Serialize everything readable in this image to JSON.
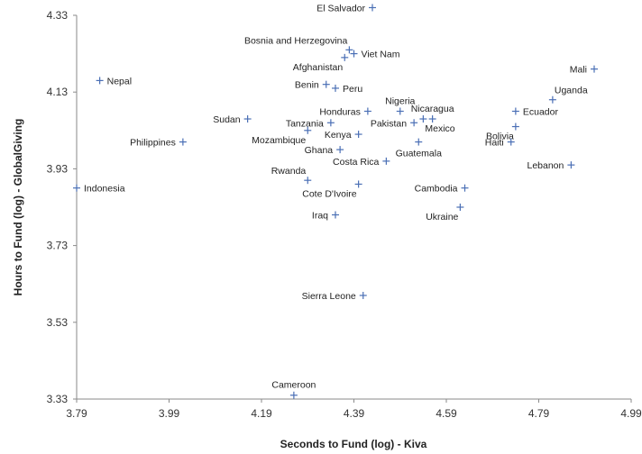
{
  "chart_data": {
    "type": "scatter",
    "xlabel": "Seconds to Fund (log) - Kiva",
    "ylabel": "Hours to Fund (log) - GlobalGiving",
    "xlim": [
      3.79,
      4.99
    ],
    "ylim": [
      3.33,
      4.33
    ],
    "x_ticks": [
      "3.79",
      "3.99",
      "4.19",
      "4.39",
      "4.59",
      "4.79",
      "4.99"
    ],
    "y_ticks": [
      "3.33",
      "3.53",
      "3.73",
      "3.93",
      "4.13",
      "4.33"
    ],
    "grid": false,
    "marker_color": "#4a6fb5",
    "points": [
      {
        "label": "El Salvador",
        "x": 4.43,
        "y": 4.35,
        "pos": "left"
      },
      {
        "label": "Bosnia and Herzegovina",
        "x": 4.38,
        "y": 4.24,
        "pos": "above-left"
      },
      {
        "label": "Viet Nam",
        "x": 4.39,
        "y": 4.23,
        "pos": "right"
      },
      {
        "label": "Afghanistan",
        "x": 4.37,
        "y": 4.22,
        "pos": "below-left"
      },
      {
        "label": "Nepal",
        "x": 3.84,
        "y": 4.16,
        "pos": "right"
      },
      {
        "label": "Mali",
        "x": 4.91,
        "y": 4.19,
        "pos": "left"
      },
      {
        "label": "Benin",
        "x": 4.33,
        "y": 4.15,
        "pos": "left"
      },
      {
        "label": "Peru",
        "x": 4.35,
        "y": 4.14,
        "pos": "right"
      },
      {
        "label": "Uganda",
        "x": 4.82,
        "y": 4.11,
        "pos": "above-right"
      },
      {
        "label": "Nigeria",
        "x": 4.49,
        "y": 4.08,
        "pos": "above"
      },
      {
        "label": "Honduras",
        "x": 4.42,
        "y": 4.08,
        "pos": "left"
      },
      {
        "label": "Nicaragua",
        "x": 4.56,
        "y": 4.06,
        "pos": "above"
      },
      {
        "label": "Ecuador",
        "x": 4.74,
        "y": 4.08,
        "pos": "right"
      },
      {
        "label": "Sudan",
        "x": 4.16,
        "y": 4.06,
        "pos": "left"
      },
      {
        "label": "Tanzania",
        "x": 4.34,
        "y": 4.05,
        "pos": "left"
      },
      {
        "label": "Pakistan",
        "x": 4.52,
        "y": 4.05,
        "pos": "left"
      },
      {
        "label": "Mexico",
        "x": 4.54,
        "y": 4.06,
        "pos": "below-right"
      },
      {
        "label": "Bolivia",
        "x": 4.74,
        "y": 4.04,
        "pos": "below-left"
      },
      {
        "label": "Mozambique",
        "x": 4.29,
        "y": 4.03,
        "pos": "below-left"
      },
      {
        "label": "Kenya",
        "x": 4.4,
        "y": 4.02,
        "pos": "left"
      },
      {
        "label": "Philippines",
        "x": 4.02,
        "y": 4.0,
        "pos": "left"
      },
      {
        "label": "Guatemala",
        "x": 4.53,
        "y": 4.0,
        "pos": "below"
      },
      {
        "label": "Haiti",
        "x": 4.73,
        "y": 4.0,
        "pos": "left"
      },
      {
        "label": "Ghana",
        "x": 4.36,
        "y": 3.98,
        "pos": "left"
      },
      {
        "label": "Costa Rica",
        "x": 4.46,
        "y": 3.95,
        "pos": "left"
      },
      {
        "label": "Lebanon",
        "x": 4.86,
        "y": 3.94,
        "pos": "left"
      },
      {
        "label": "Rwanda",
        "x": 4.29,
        "y": 3.9,
        "pos": "above-left"
      },
      {
        "label": "Cote D'Ivoire",
        "x": 4.4,
        "y": 3.89,
        "pos": "below-left"
      },
      {
        "label": "Cambodia",
        "x": 4.63,
        "y": 3.88,
        "pos": "left"
      },
      {
        "label": "Indonesia",
        "x": 3.79,
        "y": 3.88,
        "pos": "right"
      },
      {
        "label": "Ukraine",
        "x": 4.62,
        "y": 3.83,
        "pos": "below-left"
      },
      {
        "label": "Iraq",
        "x": 4.35,
        "y": 3.81,
        "pos": "left"
      },
      {
        "label": "Sierra Leone",
        "x": 4.41,
        "y": 3.6,
        "pos": "left"
      },
      {
        "label": "Cameroon",
        "x": 4.26,
        "y": 3.34,
        "pos": "above"
      }
    ]
  }
}
